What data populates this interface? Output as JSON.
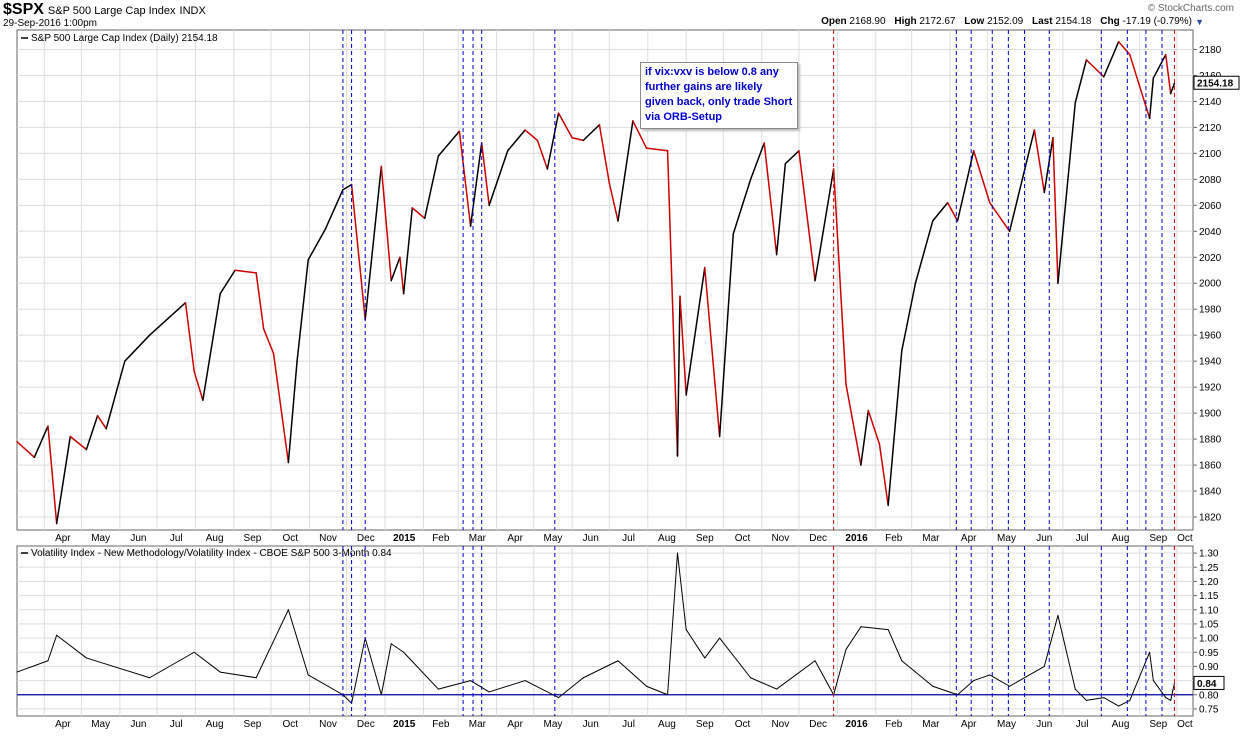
{
  "header": {
    "symbol": "$SPX",
    "name": "S&P 500 Large Cap Index",
    "exchange": "INDX",
    "datetime": "29-Sep-2016 1:00pm",
    "brand": "© StockCharts.com",
    "open_label": "Open",
    "open": "2168.90",
    "high_label": "High",
    "high": "2172.67",
    "low_label": "Low",
    "low": "2152.09",
    "last_label": "Last",
    "last": "2154.18",
    "chg_label": "Chg",
    "chg": "-17.19 (-0.79%)"
  },
  "annotation": "if vix:vxv is below 0.8 any further gains are likely given back, only trade Short via ORB-Setup",
  "chart_data": [
    {
      "type": "line",
      "title": "S&P 500 Large Cap Index (Daily) 2154.18",
      "last_value_label": "2154.18",
      "ylim": [
        1810,
        2195
      ],
      "yticks": [
        1820,
        1840,
        1860,
        1880,
        1900,
        1920,
        1940,
        1960,
        1980,
        2000,
        2020,
        2040,
        2060,
        2080,
        2100,
        2120,
        2140,
        2160,
        2180
      ],
      "x_range": [
        "2014-03-10",
        "2016-10-14"
      ],
      "colors": {
        "up": "#000000",
        "down": "#cc0000"
      },
      "series": [
        {
          "x": [
            "2014-03-10",
            "2014-03-24",
            "2014-04-04",
            "2014-04-11",
            "2014-04-22",
            "2014-05-05",
            "2014-05-14",
            "2014-05-21",
            "2014-06-05",
            "2014-06-25",
            "2014-07-24",
            "2014-07-31",
            "2014-08-07",
            "2014-08-21",
            "2014-09-02",
            "2014-09-19",
            "2014-09-25",
            "2014-10-03",
            "2014-10-15",
            "2014-10-22",
            "2014-10-31",
            "2014-11-14",
            "2014-11-28",
            "2014-12-05",
            "2014-12-16",
            "2014-12-29",
            "2015-01-06",
            "2015-01-13",
            "2015-01-16",
            "2015-01-23",
            "2015-02-02",
            "2015-02-13",
            "2015-03-02",
            "2015-03-11",
            "2015-03-20",
            "2015-03-26",
            "2015-04-10",
            "2015-04-24",
            "2015-05-04",
            "2015-05-12",
            "2015-05-21",
            "2015-06-01",
            "2015-06-10",
            "2015-06-23",
            "2015-07-01",
            "2015-07-08",
            "2015-07-20",
            "2015-07-31",
            "2015-08-17",
            "2015-08-25",
            "2015-08-27",
            "2015-09-01",
            "2015-09-16",
            "2015-09-28",
            "2015-10-09",
            "2015-10-23",
            "2015-11-03",
            "2015-11-13",
            "2015-11-20",
            "2015-12-01",
            "2015-12-14",
            "2015-12-29",
            "2016-01-08",
            "2016-01-20",
            "2016-01-26",
            "2016-02-04",
            "2016-02-11",
            "2016-02-22",
            "2016-03-04",
            "2016-03-18",
            "2016-03-30",
            "2016-04-07",
            "2016-04-20",
            "2016-05-03",
            "2016-05-19",
            "2016-06-08",
            "2016-06-16",
            "2016-06-23",
            "2016-06-27",
            "2016-07-11",
            "2016-07-20",
            "2016-08-03",
            "2016-08-15",
            "2016-08-24",
            "2016-09-09",
            "2016-09-12",
            "2016-09-22",
            "2016-09-26",
            "2016-09-29"
          ],
          "values": [
            1878,
            1866,
            1890,
            1815,
            1882,
            1872,
            1898,
            1888,
            1940,
            1960,
            1985,
            1932,
            1910,
            1992,
            2010,
            2008,
            1965,
            1946,
            1862,
            1940,
            2018,
            2042,
            2072,
            2076,
            1972,
            2090,
            2002,
            2020,
            1992,
            2058,
            2050,
            2098,
            2117,
            2044,
            2108,
            2060,
            2102,
            2118,
            2110,
            2088,
            2131,
            2112,
            2110,
            2122,
            2077,
            2048,
            2125,
            2104,
            2102,
            1867,
            1990,
            1914,
            2012,
            1882,
            2038,
            2080,
            2108,
            2022,
            2092,
            2102,
            2002,
            2088,
            1922,
            1860,
            1902,
            1876,
            1829,
            1948,
            2000,
            2048,
            2062,
            2048,
            2102,
            2062,
            2040,
            2118,
            2070,
            2112,
            2000,
            2139,
            2172,
            2159,
            2186,
            2176,
            2127,
            2158,
            2176,
            2146,
            2154
          ]
        }
      ]
    },
    {
      "type": "line",
      "title": "Volatility Index - New Methodology/Volatility Index - CBOE S&P 500 3-Month 0.84",
      "last_value_label": "0.84",
      "ylim": [
        0.725,
        1.325
      ],
      "yticks": [
        0.75,
        0.8,
        0.85,
        0.9,
        0.95,
        1.0,
        1.05,
        1.1,
        1.15,
        1.2,
        1.25,
        1.3
      ],
      "reference_line": 0.8,
      "colors": {
        "line": "#000000",
        "reference": "#0000aa"
      },
      "series": [
        {
          "x": [
            "2014-03-10",
            "2014-04-04",
            "2014-04-11",
            "2014-05-05",
            "2014-06-25",
            "2014-07-31",
            "2014-08-21",
            "2014-09-19",
            "2014-10-15",
            "2014-10-31",
            "2014-11-28",
            "2014-12-05",
            "2014-12-16",
            "2014-12-29",
            "2015-01-06",
            "2015-01-16",
            "2015-02-13",
            "2015-03-11",
            "2015-03-26",
            "2015-04-24",
            "2015-05-21",
            "2015-06-10",
            "2015-07-08",
            "2015-07-31",
            "2015-08-17",
            "2015-08-25",
            "2015-09-01",
            "2015-09-16",
            "2015-09-28",
            "2015-10-23",
            "2015-11-13",
            "2015-12-14",
            "2015-12-29",
            "2016-01-08",
            "2016-01-20",
            "2016-02-11",
            "2016-02-22",
            "2016-03-18",
            "2016-04-07",
            "2016-04-20",
            "2016-05-03",
            "2016-05-19",
            "2016-06-16",
            "2016-06-27",
            "2016-07-11",
            "2016-07-20",
            "2016-08-03",
            "2016-08-15",
            "2016-08-24",
            "2016-09-09",
            "2016-09-12",
            "2016-09-22",
            "2016-09-26",
            "2016-09-29"
          ],
          "values": [
            0.88,
            0.92,
            1.01,
            0.93,
            0.86,
            0.95,
            0.88,
            0.86,
            1.1,
            0.87,
            0.8,
            0.77,
            1.0,
            0.8,
            0.98,
            0.95,
            0.82,
            0.85,
            0.81,
            0.85,
            0.79,
            0.86,
            0.92,
            0.83,
            0.8,
            1.3,
            1.03,
            0.93,
            1.0,
            0.86,
            0.82,
            0.92,
            0.8,
            0.96,
            1.04,
            1.03,
            0.92,
            0.83,
            0.8,
            0.85,
            0.87,
            0.83,
            0.9,
            1.08,
            0.82,
            0.78,
            0.79,
            0.76,
            0.78,
            0.95,
            0.85,
            0.79,
            0.78,
            0.84
          ]
        }
      ]
    }
  ],
  "x_axis": {
    "ticks": [
      {
        "date": "2014-04-01",
        "label": "Apr",
        "major": false
      },
      {
        "date": "2014-05-01",
        "label": "May",
        "major": false
      },
      {
        "date": "2014-06-01",
        "label": "Jun",
        "major": false
      },
      {
        "date": "2014-07-01",
        "label": "Jul",
        "major": false
      },
      {
        "date": "2014-08-01",
        "label": "Aug",
        "major": false
      },
      {
        "date": "2014-09-01",
        "label": "Sep",
        "major": false
      },
      {
        "date": "2014-10-01",
        "label": "Oct",
        "major": false
      },
      {
        "date": "2014-11-01",
        "label": "Nov",
        "major": false
      },
      {
        "date": "2014-12-01",
        "label": "Dec",
        "major": false
      },
      {
        "date": "2015-01-01",
        "label": "2015",
        "major": true
      },
      {
        "date": "2015-02-01",
        "label": "Feb",
        "major": false
      },
      {
        "date": "2015-03-01",
        "label": "Mar",
        "major": false
      },
      {
        "date": "2015-04-01",
        "label": "Apr",
        "major": false
      },
      {
        "date": "2015-05-01",
        "label": "May",
        "major": false
      },
      {
        "date": "2015-06-01",
        "label": "Jun",
        "major": false
      },
      {
        "date": "2015-07-01",
        "label": "Jul",
        "major": false
      },
      {
        "date": "2015-08-01",
        "label": "Aug",
        "major": false
      },
      {
        "date": "2015-09-01",
        "label": "Sep",
        "major": false
      },
      {
        "date": "2015-10-01",
        "label": "Oct",
        "major": false
      },
      {
        "date": "2015-11-01",
        "label": "Nov",
        "major": false
      },
      {
        "date": "2015-12-01",
        "label": "Dec",
        "major": false
      },
      {
        "date": "2016-01-01",
        "label": "2016",
        "major": true
      },
      {
        "date": "2016-02-01",
        "label": "Feb",
        "major": false
      },
      {
        "date": "2016-03-01",
        "label": "Mar",
        "major": false
      },
      {
        "date": "2016-04-01",
        "label": "Apr",
        "major": false
      },
      {
        "date": "2016-05-01",
        "label": "May",
        "major": false
      },
      {
        "date": "2016-06-01",
        "label": "Jun",
        "major": false
      },
      {
        "date": "2016-07-01",
        "label": "Jul",
        "major": false
      },
      {
        "date": "2016-08-01",
        "label": "Aug",
        "major": false
      },
      {
        "date": "2016-09-01",
        "label": "Sep",
        "major": false
      },
      {
        "date": "2016-10-01",
        "label": "Oct",
        "major": false
      }
    ]
  },
  "markers": [
    {
      "date": "2014-11-28",
      "color": "#0000cc"
    },
    {
      "date": "2014-12-05",
      "color": "#0000cc"
    },
    {
      "date": "2014-12-16",
      "color": "#0000cc"
    },
    {
      "date": "2015-03-05",
      "color": "#0000cc"
    },
    {
      "date": "2015-03-13",
      "color": "#0000cc"
    },
    {
      "date": "2015-03-20",
      "color": "#0000cc"
    },
    {
      "date": "2015-05-18",
      "color": "#0000cc"
    },
    {
      "date": "2015-12-29",
      "color": "#cc0000"
    },
    {
      "date": "2016-04-06",
      "color": "#0000cc"
    },
    {
      "date": "2016-04-18",
      "color": "#0000cc"
    },
    {
      "date": "2016-05-05",
      "color": "#0000cc"
    },
    {
      "date": "2016-05-18",
      "color": "#0000cc"
    },
    {
      "date": "2016-05-31",
      "color": "#0000cc"
    },
    {
      "date": "2016-06-20",
      "color": "#0000cc"
    },
    {
      "date": "2016-08-01",
      "color": "#0000cc"
    },
    {
      "date": "2016-08-22",
      "color": "#0000cc"
    },
    {
      "date": "2016-09-06",
      "color": "#0000cc"
    },
    {
      "date": "2016-09-19",
      "color": "#0000cc"
    },
    {
      "date": "2016-09-29",
      "color": "#cc0000"
    }
  ]
}
